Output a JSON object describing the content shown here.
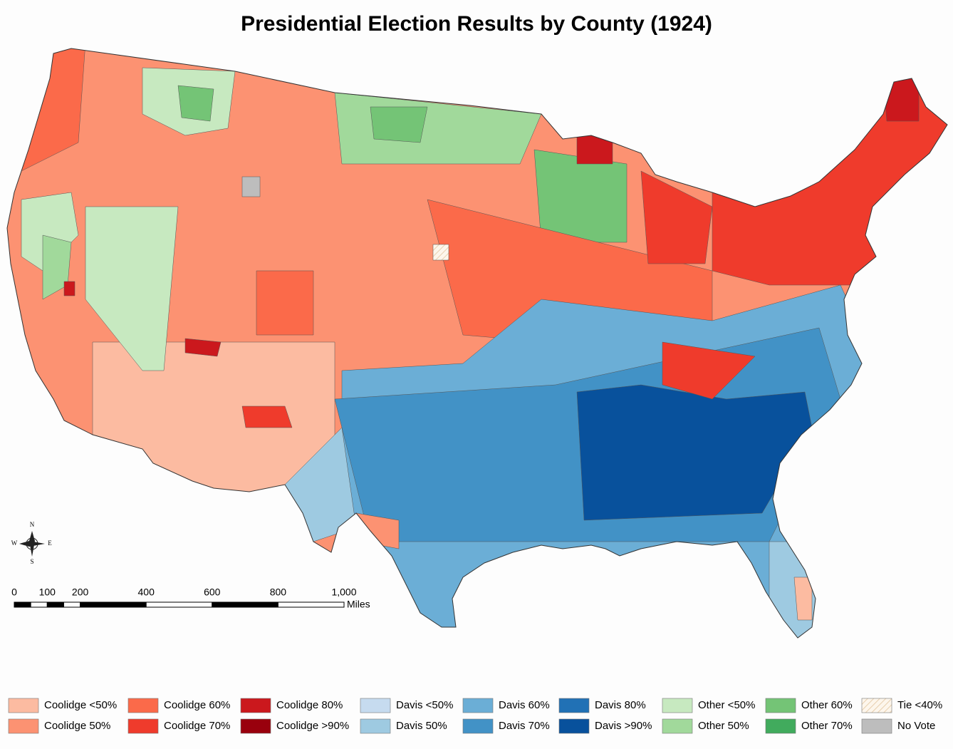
{
  "title": "Presidential Election Results by County (1924)",
  "compass": {
    "north": "N",
    "south": "S",
    "east": "E",
    "west": "W"
  },
  "scale_bar": {
    "ticks": [
      0,
      100,
      200,
      400,
      600,
      800,
      {
        "value": 1000,
        "label": "1,000"
      }
    ],
    "unit": "Miles"
  },
  "legend": {
    "items": [
      {
        "label": "Coolidge <50%",
        "color": "#fcbba1"
      },
      {
        "label": "Coolidge 50%",
        "color": "#fc9272"
      },
      {
        "label": "Coolidge 60%",
        "color": "#fb6a4a"
      },
      {
        "label": "Coolidge 70%",
        "color": "#ef3b2c"
      },
      {
        "label": "Coolidge 80%",
        "color": "#cb181d"
      },
      {
        "label": "Coolidge >90%",
        "color": "#99000d"
      },
      {
        "label": "Davis <50%",
        "color": "#c6dbef"
      },
      {
        "label": "Davis 50%",
        "color": "#9ecae1"
      },
      {
        "label": "Davis 60%",
        "color": "#6baed6"
      },
      {
        "label": "Davis 70%",
        "color": "#4292c6"
      },
      {
        "label": "Davis 80%",
        "color": "#2171b5"
      },
      {
        "label": "Davis >90%",
        "color": "#08519c"
      },
      {
        "label": "Other <50%",
        "color": "#c7e9c0"
      },
      {
        "label": "Other 50%",
        "color": "#a1d99b"
      },
      {
        "label": "Other 60%",
        "color": "#74c476"
      },
      {
        "label": "Other 70%",
        "color": "#41ab5d"
      },
      {
        "label": "Tie <40%",
        "color": "url(#hatch)"
      },
      {
        "label": "No Vote",
        "color": "#bdbdbd"
      }
    ]
  }
}
